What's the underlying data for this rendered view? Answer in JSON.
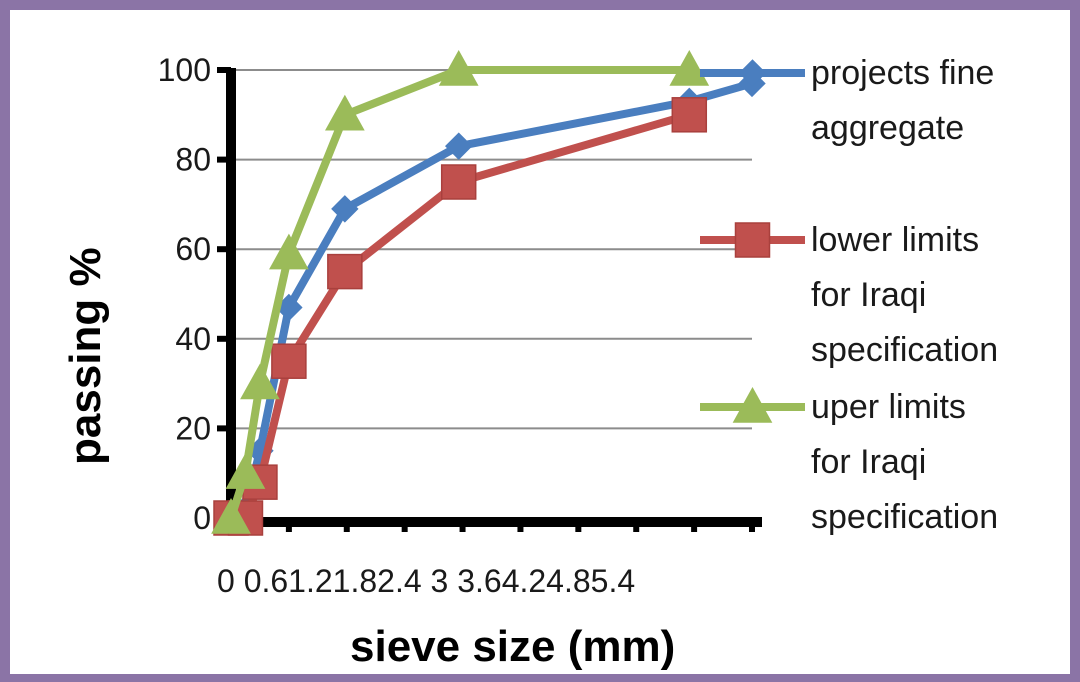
{
  "chart_data": {
    "type": "line",
    "xlabel": "sieve size (mm)",
    "ylabel": "passing %",
    "xlim": [
      0,
      5.4
    ],
    "ylim": [
      0,
      100
    ],
    "x_tick_text": "0 0.61.21.82.4 3 3.64.24.85.4",
    "y_ticks": [
      "0",
      "20",
      "40",
      "60",
      "80",
      "100"
    ],
    "y_tick_values": [
      0,
      20,
      40,
      60,
      80,
      100
    ],
    "grid": true,
    "legend_position": "right",
    "series": [
      {
        "name": "projects fine aggregate",
        "color": "#4a7ebf",
        "marker": "diamond",
        "points": [
          [
            0,
            0
          ],
          [
            0.15,
            2
          ],
          [
            0.3,
            15
          ],
          [
            0.6,
            47
          ],
          [
            1.18,
            69
          ],
          [
            2.36,
            83
          ],
          [
            4.75,
            93
          ],
          [
            5.4,
            97
          ]
        ]
      },
      {
        "name": "lower limits for Iraqi specification",
        "color": "#c0504d",
        "marker": "square",
        "points": [
          [
            0,
            0
          ],
          [
            0.15,
            0
          ],
          [
            0.3,
            8
          ],
          [
            0.6,
            35
          ],
          [
            1.18,
            55
          ],
          [
            2.36,
            75
          ],
          [
            4.75,
            90
          ]
        ]
      },
      {
        "name": "uper limits for Iraqi specification",
        "color": "#9bbb59",
        "marker": "triangle",
        "points": [
          [
            0,
            0
          ],
          [
            0.15,
            10
          ],
          [
            0.3,
            30
          ],
          [
            0.6,
            59
          ],
          [
            1.18,
            90
          ],
          [
            2.36,
            100
          ],
          [
            4.75,
            100
          ]
        ]
      }
    ],
    "legend": [
      {
        "lines": [
          "projects fine",
          "aggregate"
        ]
      },
      {
        "lines": [
          "lower limits",
          "for Iraqi",
          "specification"
        ]
      },
      {
        "lines": [
          "uper limits",
          "for Iraqi",
          "specification"
        ]
      }
    ]
  }
}
